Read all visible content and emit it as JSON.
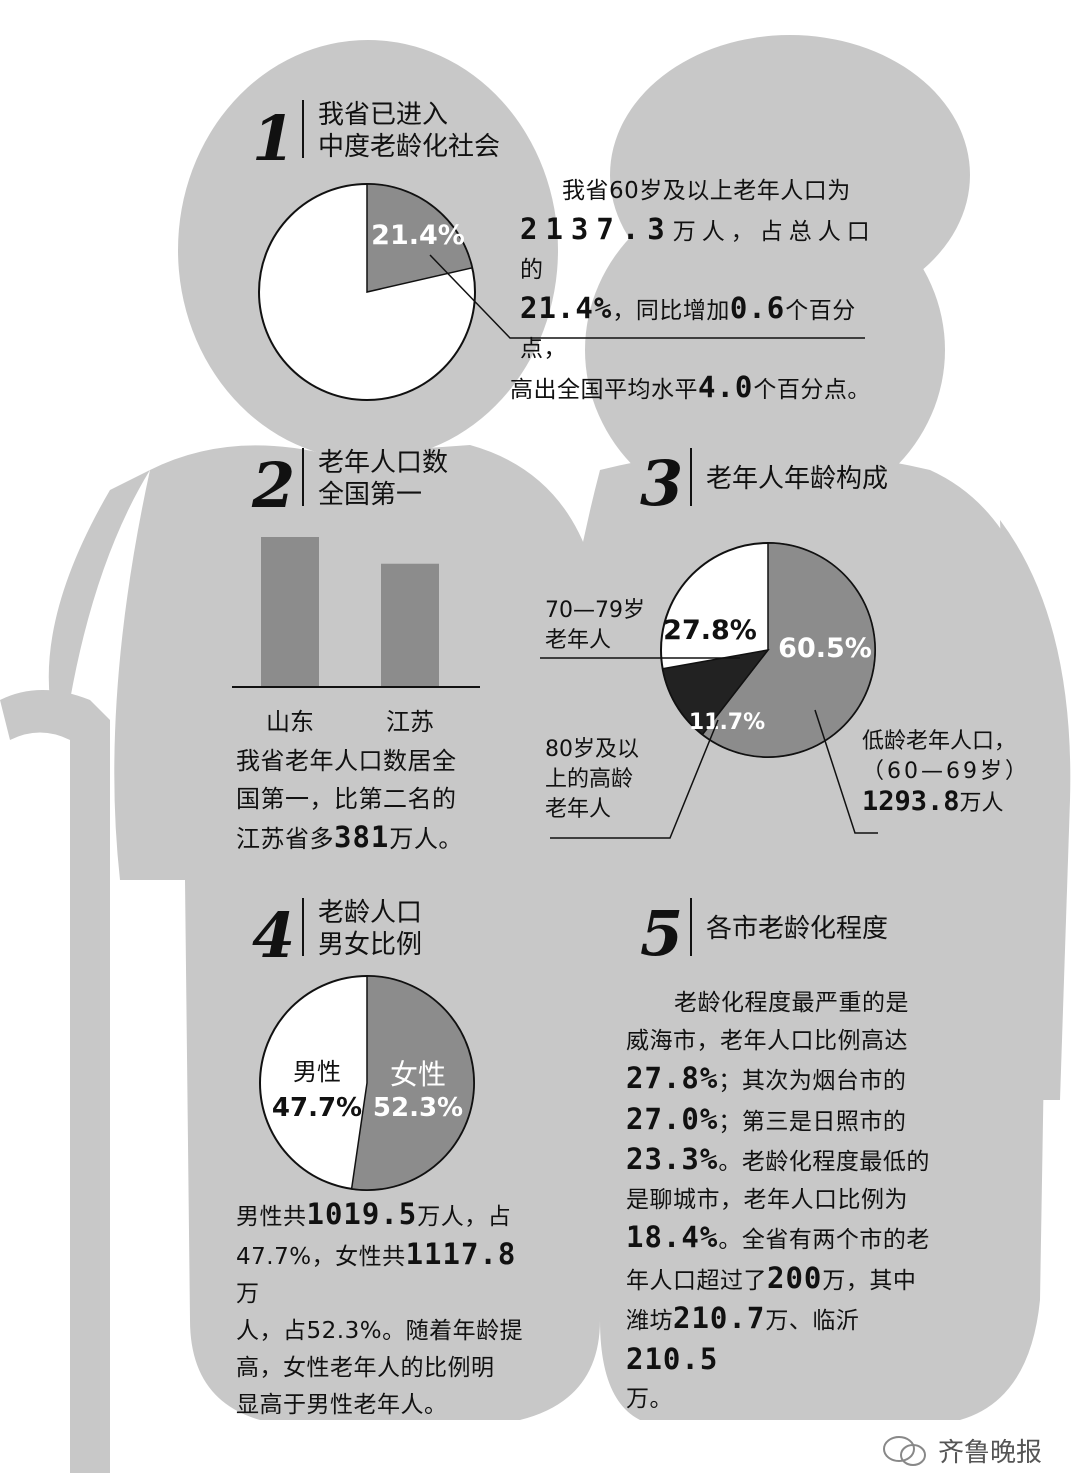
{
  "sections": {
    "s1": {
      "num": "1",
      "title1": "我省已进入",
      "title2": "中度老龄化社会"
    },
    "s2": {
      "num": "2",
      "title1": "老年人口数",
      "title2": "全国第一"
    },
    "s3": {
      "num": "3",
      "title1": "老年人年龄构成"
    },
    "s4": {
      "num": "4",
      "title1": "老龄人口",
      "title2": "男女比例"
    },
    "s5": {
      "num": "5",
      "title1": "各市老龄化程度"
    }
  },
  "texts": {
    "p1_line1": "我省60岁及以上老年人口为",
    "p1_v1": "2137.3",
    "p1_t1": "万人，占总人口的",
    "p1_v2": "21.4%",
    "p1_t2": "，同比增加",
    "p1_v3": "0.6",
    "p1_t3": "个百分点，",
    "p1_t4": "高出全国平均水平",
    "p1_v4": "4.0",
    "p1_t5": "个百分点。",
    "p2_line1": "我省老年人口数居全",
    "p2_line2": "国第一，比第二名的",
    "p2_t1": "江苏省多",
    "p2_v1": "381",
    "p2_t2": "万人。",
    "p4_t1": "男性共",
    "p4_v1": "1019.5",
    "p4_t2": "万人，占",
    "p4_t3": "47.7%，女性共",
    "p4_v2": "1117.8",
    "p4_t4": "万",
    "p4_t5": "人，占52.3%。随着年龄提",
    "p4_line4": "高，女性老年人的比例明",
    "p4_line5": "显高于男性老年人。",
    "p5_line1": "老龄化程度最严重的是",
    "p5_line2": "威海市，老年人口比例高达",
    "p5_v1": "27.8%",
    "p5_t1": "；其次为烟台市的",
    "p5_v2": "27.0%",
    "p5_t2": "；第三是日照市的",
    "p5_v3": "23.3%",
    "p5_t3": "。老龄化程度最低的",
    "p5_line6": "是聊城市，老年人口比例为",
    "p5_v4": "18.4%",
    "p5_t4": "。全省有两个市的老",
    "p5_t5": "年人口超过了",
    "p5_v5": "200",
    "p5_t6": "万，其中",
    "p5_t7": "潍坊",
    "p5_v6": "210.7",
    "p5_t8": "万、临沂",
    "p5_v7": "210.5",
    "p5_t9": "万。",
    "s3_label_7079_1": "70—79岁",
    "s3_label_7079_2": "老年人",
    "s3_label_80_1": "80岁及以",
    "s3_label_80_2": "上的高龄",
    "s3_label_80_3": "老年人",
    "s3_label_low_1": "低龄老年人口，",
    "s3_label_low_2": "（60—69岁）",
    "s3_label_low_v": "1293.8",
    "s3_label_low_u": "万人",
    "watermark": "齐鲁晚报"
  },
  "colors": {
    "silhouette": "#c8c8c8",
    "slice": "#8c8c8c",
    "dark_slice": "#222222",
    "bar": "#8c8c8c"
  },
  "chart_data": [
    {
      "type": "pie",
      "slices": [
        {
          "label": "21.4%",
          "value": 21.4
        },
        {
          "label": "",
          "value": 78.6
        }
      ]
    },
    {
      "type": "bar",
      "categories": [
        "山东",
        "江苏"
      ],
      "values": [
        2137.3,
        1756.3
      ]
    },
    {
      "type": "pie",
      "slices": [
        {
          "label": "60.5%",
          "value": 60.5
        },
        {
          "label": "11.7%",
          "value": 11.7
        },
        {
          "label": "27.8%",
          "value": 27.8
        }
      ]
    },
    {
      "type": "pie",
      "slices": [
        {
          "label": "女性",
          "pct": "52.3%",
          "value": 52.3
        },
        {
          "label": "男性",
          "pct": "47.7%",
          "value": 47.7
        }
      ]
    }
  ]
}
